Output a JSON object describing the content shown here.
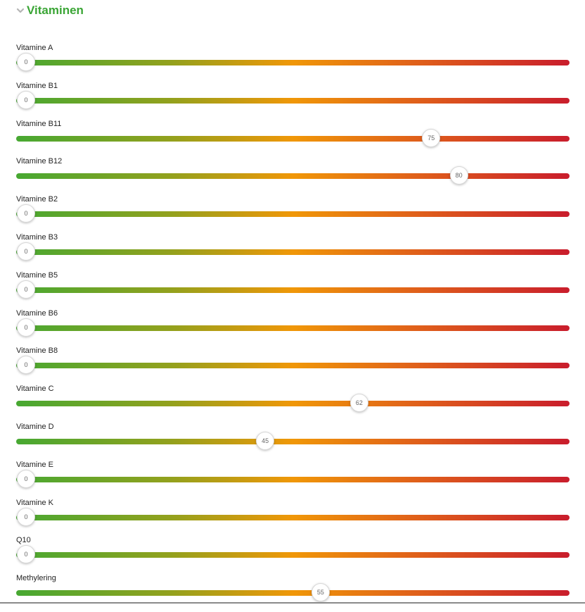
{
  "section": {
    "title": "Vitaminen",
    "icon": "chevron-down-icon",
    "title_color": "#3aa535"
  },
  "slider_scale": {
    "min": 0,
    "max": 100,
    "gradient_colors": [
      "#47a832",
      "#93a11d",
      "#f09708",
      "#e0611a",
      "#c91d2c"
    ]
  },
  "sliders": [
    {
      "label": "Vitamine A",
      "value": 0
    },
    {
      "label": "Vitamine B1",
      "value": 0
    },
    {
      "label": "Vitamine B11",
      "value": 75
    },
    {
      "label": "Vitamine B12",
      "value": 80
    },
    {
      "label": "Vitamine B2",
      "value": 0
    },
    {
      "label": "Vitamine B3",
      "value": 0
    },
    {
      "label": "Vitamine B5",
      "value": 0
    },
    {
      "label": "Vitamine B6",
      "value": 0
    },
    {
      "label": "Vitamine B8",
      "value": 0
    },
    {
      "label": "Vitamine C",
      "value": 62
    },
    {
      "label": "Vitamine D",
      "value": 45
    },
    {
      "label": "Vitamine E",
      "value": 0
    },
    {
      "label": "Vitamine K",
      "value": 0
    },
    {
      "label": "Q10",
      "value": 0
    },
    {
      "label": "Methylering",
      "value": 55
    }
  ]
}
